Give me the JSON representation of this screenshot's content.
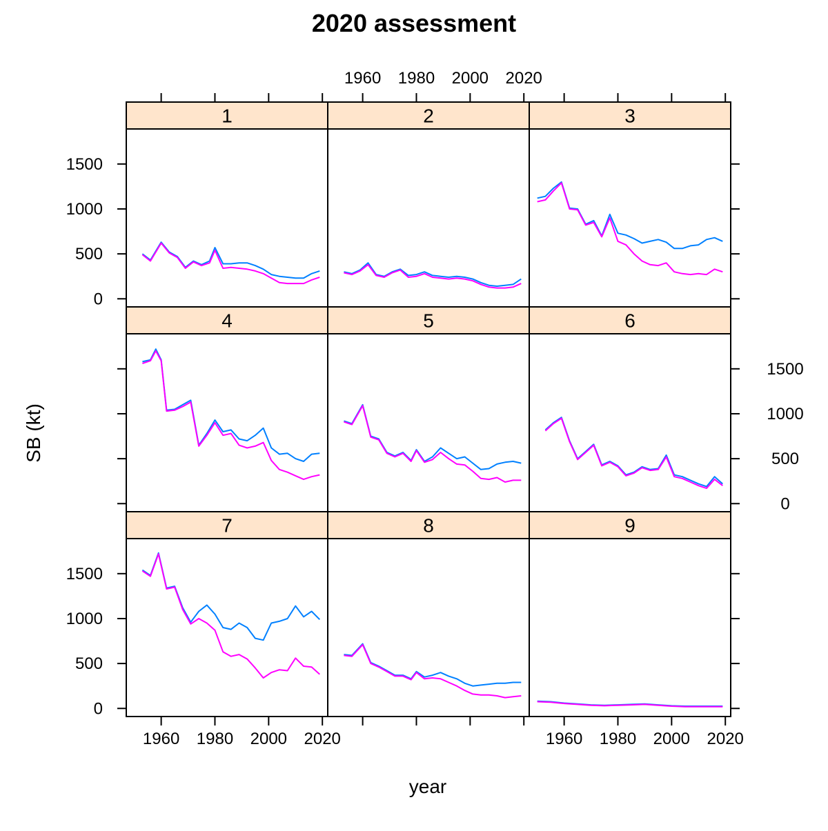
{
  "chart_data": {
    "type": "line",
    "layout": "lattice-3x3",
    "title": "2020 assessment",
    "xlabel": "year",
    "ylabel": "SB (kt)",
    "xlim": [
      1947,
      2022
    ],
    "ylim": [
      -90,
      1890
    ],
    "x_ticks": [
      1960,
      1980,
      2000,
      2020
    ],
    "y_ticks": [
      0,
      500,
      1000,
      1500
    ],
    "grid": false,
    "colors": {
      "series_1": "#0080ff",
      "series_2": "#ff00ff",
      "strip": "#ffe5cc"
    },
    "panels": [
      {
        "label": "1",
        "series": [
          {
            "color": "#0080ff",
            "x": [
              1953,
              1956,
              1960,
              1963,
              1966,
              1969,
              1972,
              1975,
              1978,
              1980,
              1983,
              1986,
              1989,
              1992,
              1995,
              1998,
              2001,
              2004,
              2007,
              2010,
              2013,
              2016,
              2019
            ],
            "y": [
              500,
              430,
              630,
              520,
              470,
              350,
              420,
              380,
              420,
              570,
              390,
              390,
              400,
              400,
              370,
              330,
              270,
              250,
              240,
              230,
              230,
              280,
              310
            ]
          },
          {
            "color": "#ff00ff",
            "x": [
              1953,
              1956,
              1960,
              1963,
              1966,
              1969,
              1972,
              1975,
              1978,
              1980,
              1983,
              1986,
              1989,
              1992,
              1995,
              1998,
              2001,
              2004,
              2007,
              2010,
              2013,
              2016,
              2019
            ],
            "y": [
              490,
              420,
              620,
              510,
              460,
              340,
              410,
              370,
              400,
              540,
              340,
              350,
              340,
              330,
              310,
              280,
              230,
              180,
              170,
              170,
              170,
              210,
              240
            ]
          }
        ]
      },
      {
        "label": "2",
        "series": [
          {
            "color": "#0080ff",
            "x": [
              1953,
              1956,
              1959,
              1962,
              1965,
              1968,
              1971,
              1974,
              1977,
              1980,
              1983,
              1986,
              1989,
              1992,
              1995,
              1998,
              2001,
              2004,
              2007,
              2010,
              2013,
              2016,
              2019
            ],
            "y": [
              300,
              280,
              320,
              400,
              270,
              250,
              300,
              330,
              260,
              270,
              300,
              260,
              250,
              240,
              250,
              240,
              220,
              180,
              150,
              140,
              150,
              160,
              220
            ]
          },
          {
            "color": "#ff00ff",
            "x": [
              1953,
              1956,
              1959,
              1962,
              1965,
              1968,
              1971,
              1974,
              1977,
              1980,
              1983,
              1986,
              1989,
              1992,
              1995,
              1998,
              2001,
              2004,
              2007,
              2010,
              2013,
              2016,
              2019
            ],
            "y": [
              290,
              270,
              310,
              380,
              260,
              240,
              290,
              320,
              240,
              250,
              280,
              240,
              230,
              220,
              230,
              220,
              200,
              160,
              130,
              120,
              120,
              130,
              170
            ]
          }
        ]
      },
      {
        "label": "3",
        "series": [
          {
            "color": "#0080ff",
            "x": [
              1950,
              1953,
              1956,
              1959,
              1962,
              1965,
              1968,
              1971,
              1974,
              1977,
              1980,
              1983,
              1986,
              1989,
              1992,
              1995,
              1998,
              2001,
              2004,
              2007,
              2010,
              2013,
              2016,
              2019
            ],
            "y": [
              1120,
              1140,
              1230,
              1300,
              1010,
              1000,
              830,
              870,
              700,
              940,
              730,
              710,
              670,
              620,
              640,
              660,
              630,
              560,
              560,
              590,
              600,
              660,
              680,
              640
            ]
          },
          {
            "color": "#ff00ff",
            "x": [
              1950,
              1953,
              1956,
              1959,
              1962,
              1965,
              1968,
              1971,
              1974,
              1977,
              1980,
              1983,
              1986,
              1989,
              1992,
              1995,
              1998,
              2001,
              2004,
              2007,
              2010,
              2013,
              2016,
              2019
            ],
            "y": [
              1080,
              1100,
              1200,
              1290,
              1000,
              990,
              820,
              850,
              690,
              900,
              640,
              600,
              500,
              420,
              380,
              370,
              400,
              300,
              280,
              270,
              280,
              270,
              330,
              300
            ]
          }
        ]
      },
      {
        "label": "4",
        "series": [
          {
            "color": "#0080ff",
            "x": [
              1953,
              1956,
              1958,
              1960,
              1962,
              1965,
              1968,
              1971,
              1974,
              1977,
              1980,
              1983,
              1986,
              1989,
              1992,
              1995,
              1998,
              2001,
              2004,
              2007,
              2010,
              2013,
              2016,
              2019
            ],
            "y": [
              1580,
              1600,
              1720,
              1600,
              1040,
              1050,
              1100,
              1150,
              650,
              780,
              930,
              800,
              820,
              720,
              700,
              760,
              840,
              620,
              550,
              560,
              500,
              470,
              550,
              560
            ]
          },
          {
            "color": "#ff00ff",
            "x": [
              1953,
              1956,
              1958,
              1960,
              1962,
              1965,
              1968,
              1971,
              1974,
              1977,
              1980,
              1983,
              1986,
              1989,
              1992,
              1995,
              1998,
              2001,
              2004,
              2007,
              2010,
              2013,
              2016,
              2019
            ],
            "y": [
              1560,
              1590,
              1700,
              1590,
              1030,
              1040,
              1080,
              1130,
              640,
              760,
              900,
              760,
              780,
              650,
              620,
              640,
              680,
              480,
              380,
              350,
              310,
              270,
              300,
              320
            ]
          }
        ]
      },
      {
        "label": "5",
        "series": [
          {
            "color": "#0080ff",
            "x": [
              1953,
              1956,
              1960,
              1963,
              1966,
              1969,
              1972,
              1975,
              1978,
              1980,
              1983,
              1986,
              1989,
              1992,
              1995,
              1998,
              2001,
              2004,
              2007,
              2010,
              2013,
              2016,
              2019
            ],
            "y": [
              920,
              890,
              1100,
              750,
              720,
              570,
              530,
              570,
              480,
              600,
              470,
              520,
              620,
              560,
              500,
              520,
              450,
              380,
              390,
              440,
              460,
              470,
              450
            ]
          },
          {
            "color": "#ff00ff",
            "x": [
              1953,
              1956,
              1960,
              1963,
              1966,
              1969,
              1972,
              1975,
              1978,
              1980,
              1983,
              1986,
              1989,
              1992,
              1995,
              1998,
              2001,
              2004,
              2007,
              2010,
              2013,
              2016,
              2019
            ],
            "y": [
              910,
              880,
              1090,
              740,
              710,
              560,
              520,
              560,
              470,
              590,
              460,
              490,
              570,
              500,
              440,
              430,
              360,
              280,
              270,
              290,
              240,
              260,
              260
            ]
          }
        ]
      },
      {
        "label": "6",
        "series": [
          {
            "color": "#0080ff",
            "x": [
              1953,
              1956,
              1959,
              1962,
              1965,
              1968,
              1971,
              1974,
              1977,
              1980,
              1983,
              1986,
              1989,
              1992,
              1995,
              1998,
              2001,
              2004,
              2007,
              2010,
              2013,
              2016,
              2019
            ],
            "y": [
              820,
              900,
              960,
              700,
              500,
              580,
              660,
              430,
              470,
              420,
              320,
              350,
              410,
              380,
              390,
              540,
              320,
              300,
              260,
              220,
              190,
              300,
              220
            ]
          },
          {
            "color": "#ff00ff",
            "x": [
              1953,
              1956,
              1959,
              1962,
              1965,
              1968,
              1971,
              1974,
              1977,
              1980,
              1983,
              1986,
              1989,
              1992,
              1995,
              1998,
              2001,
              2004,
              2007,
              2010,
              2013,
              2016,
              2019
            ],
            "y": [
              810,
              890,
              950,
              690,
              490,
              570,
              650,
              420,
              460,
              410,
              310,
              340,
              400,
              370,
              380,
              520,
              300,
              280,
              240,
              200,
              170,
              270,
              200
            ]
          }
        ]
      },
      {
        "label": "7",
        "series": [
          {
            "color": "#0080ff",
            "x": [
              1953,
              1956,
              1959,
              1962,
              1965,
              1968,
              1971,
              1974,
              1977,
              1980,
              1983,
              1986,
              1989,
              1992,
              1995,
              1998,
              2001,
              2004,
              2007,
              2010,
              2013,
              2016,
              2019
            ],
            "y": [
              1540,
              1480,
              1730,
              1340,
              1360,
              1120,
              960,
              1080,
              1150,
              1050,
              900,
              880,
              950,
              900,
              780,
              760,
              950,
              970,
              1000,
              1140,
              1020,
              1080,
              990
            ]
          },
          {
            "color": "#ff00ff",
            "x": [
              1953,
              1956,
              1959,
              1962,
              1965,
              1968,
              1971,
              1974,
              1977,
              1980,
              1983,
              1986,
              1989,
              1992,
              1995,
              1998,
              2001,
              2004,
              2007,
              2010,
              2013,
              2016,
              2019
            ],
            "y": [
              1530,
              1470,
              1720,
              1330,
              1350,
              1100,
              940,
              1000,
              950,
              870,
              630,
              580,
              600,
              550,
              450,
              340,
              400,
              430,
              420,
              560,
              470,
              460,
              380
            ]
          }
        ]
      },
      {
        "label": "8",
        "series": [
          {
            "color": "#0080ff",
            "x": [
              1953,
              1956,
              1960,
              1963,
              1966,
              1969,
              1972,
              1975,
              1978,
              1980,
              1983,
              1986,
              1989,
              1992,
              1995,
              1998,
              2001,
              2004,
              2007,
              2010,
              2013,
              2016,
              2019
            ],
            "y": [
              600,
              590,
              720,
              510,
              470,
              420,
              370,
              370,
              330,
              410,
              350,
              370,
              400,
              360,
              330,
              280,
              250,
              260,
              270,
              280,
              280,
              290,
              290
            ]
          },
          {
            "color": "#ff00ff",
            "x": [
              1953,
              1956,
              1960,
              1963,
              1966,
              1969,
              1972,
              1975,
              1978,
              1980,
              1983,
              1986,
              1989,
              1992,
              1995,
              1998,
              2001,
              2004,
              2007,
              2010,
              2013,
              2016,
              2019
            ],
            "y": [
              590,
              580,
              710,
              500,
              460,
              410,
              360,
              360,
              320,
              400,
              330,
              340,
              330,
              290,
              250,
              200,
              160,
              150,
              150,
              140,
              120,
              130,
              140
            ]
          }
        ]
      },
      {
        "label": "9",
        "series": [
          {
            "color": "#0080ff",
            "x": [
              1950,
              1955,
              1960,
              1965,
              1970,
              1975,
              1980,
              1985,
              1990,
              1995,
              2000,
              2005,
              2010,
              2015,
              2019
            ],
            "y": [
              80,
              75,
              60,
              50,
              40,
              35,
              40,
              45,
              50,
              40,
              30,
              25,
              25,
              25,
              25
            ]
          },
          {
            "color": "#ff00ff",
            "x": [
              1950,
              1955,
              1960,
              1965,
              1970,
              1975,
              1980,
              1985,
              1990,
              1995,
              2000,
              2005,
              2010,
              2015,
              2019
            ],
            "y": [
              75,
              70,
              55,
              45,
              35,
              30,
              35,
              40,
              45,
              35,
              25,
              20,
              20,
              20,
              20
            ]
          }
        ]
      }
    ]
  }
}
